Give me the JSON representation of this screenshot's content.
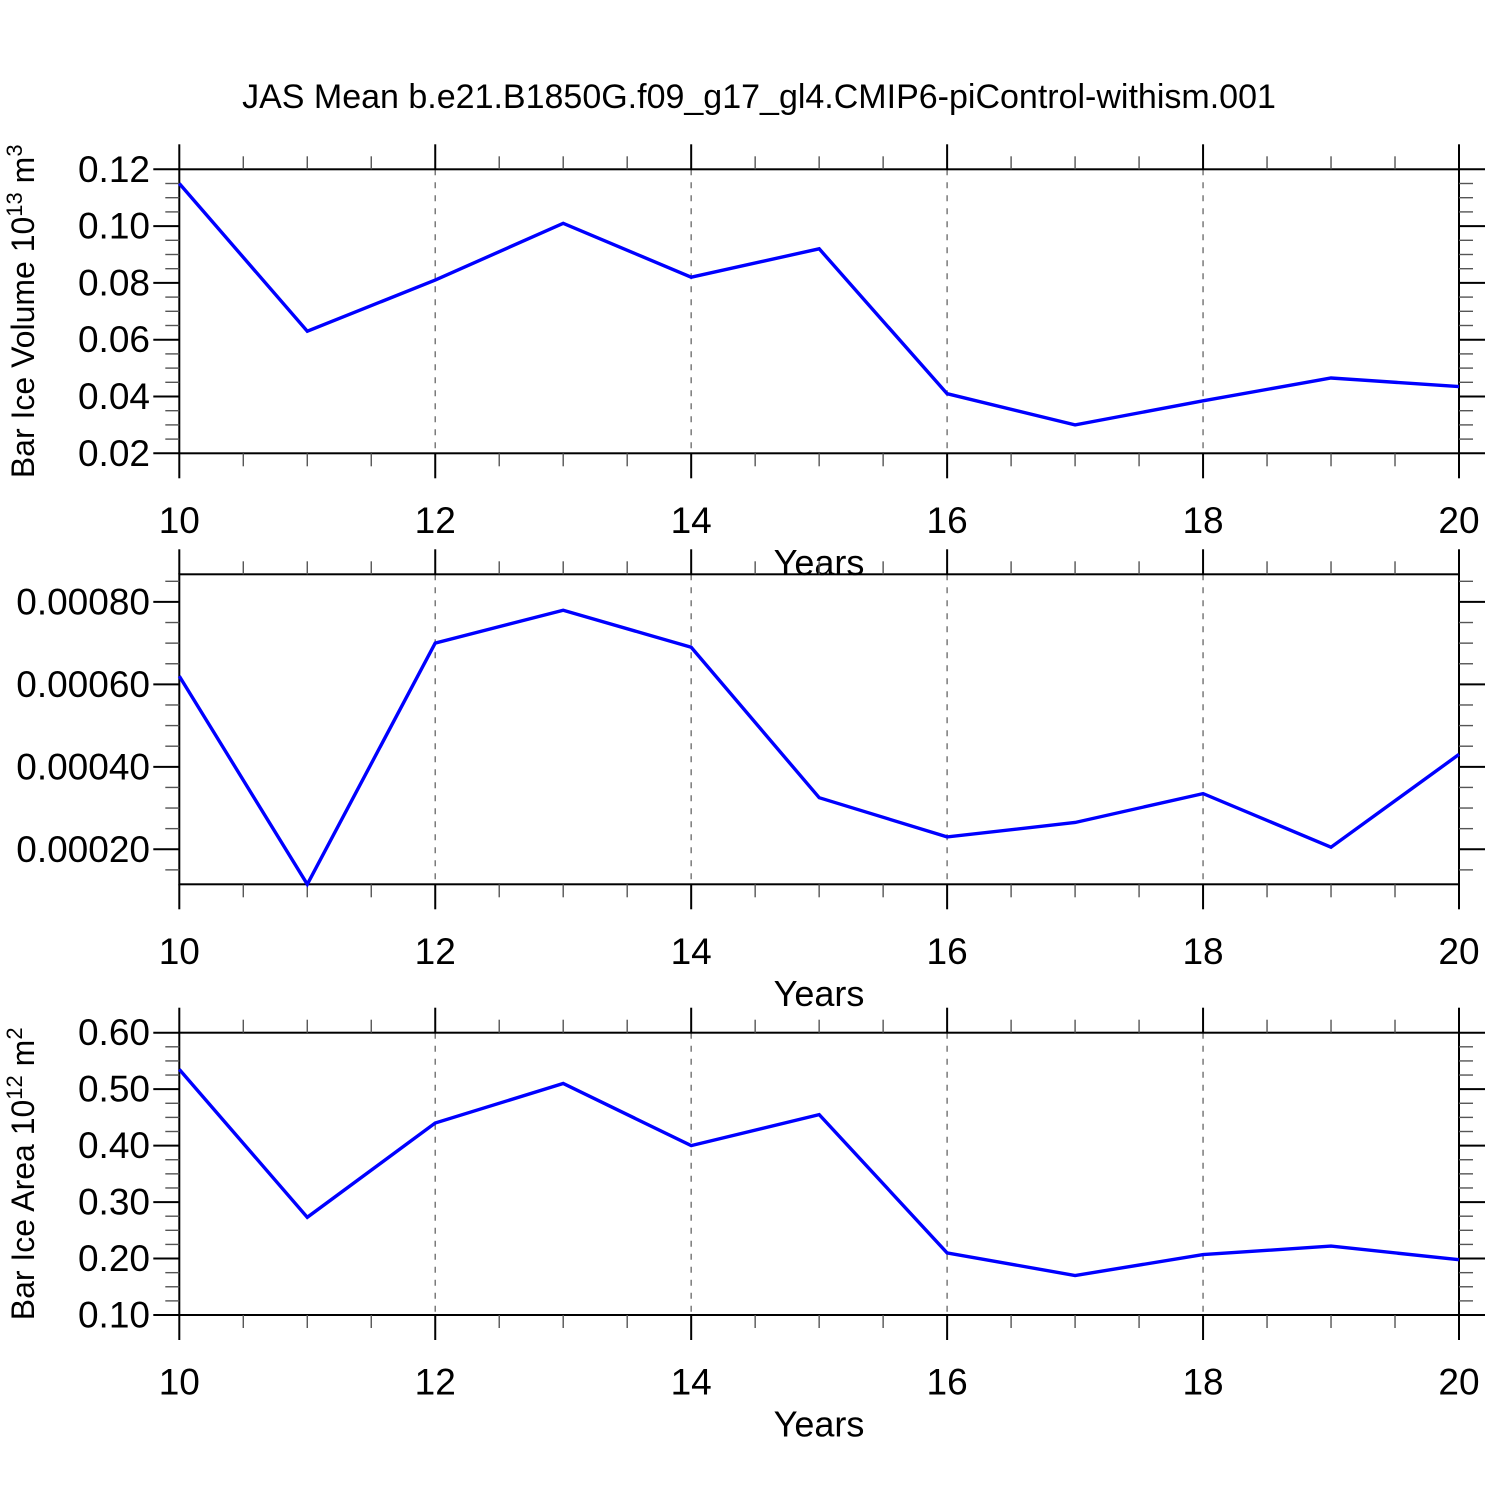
{
  "figure_title": "JAS Mean b.e21.B1850G.f09_g17_gl4.CMIP6-piControl-withism.001",
  "colors": {
    "line": "#0000ff",
    "axis": "#000000",
    "grid": "#7a7a7a",
    "minor_tick": "#555555",
    "text": "#000000",
    "background": "#ffffff"
  },
  "chart_data": {
    "type": "line",
    "n_panels": 3,
    "xlabel": "Years",
    "x_range": [
      10,
      20
    ],
    "x_minor_step": 0.5,
    "grid_x": [
      12,
      14,
      16,
      18
    ],
    "xticks": [
      {
        "v": 10,
        "t": "10"
      },
      {
        "v": 12,
        "t": "12"
      },
      {
        "v": 14,
        "t": "14"
      },
      {
        "v": 16,
        "t": "16"
      },
      {
        "v": 18,
        "t": "18"
      },
      {
        "v": 20,
        "t": "20"
      }
    ],
    "panels": [
      {
        "name": "bar-ice-volume",
        "ylabel_parts": [
          {
            "t": "Bar Ice Volume 10"
          },
          {
            "t": "13",
            "sup": true
          },
          {
            "t": " m"
          },
          {
            "t": "3",
            "sup": true
          }
        ],
        "x": [
          10,
          11,
          12,
          13,
          14,
          15,
          16,
          17,
          18,
          19,
          20
        ],
        "values": [
          0.115,
          0.063,
          0.081,
          0.101,
          0.082,
          0.092,
          0.041,
          0.03,
          0.0385,
          0.0465,
          0.0435
        ],
        "ylim": [
          0.02,
          0.12
        ],
        "y_minor_step": 0.005,
        "yticks": [
          {
            "v": 0.02,
            "t": "0.02"
          },
          {
            "v": 0.04,
            "t": "0.04"
          },
          {
            "v": 0.06,
            "t": "0.06"
          },
          {
            "v": 0.08,
            "t": "0.08"
          },
          {
            "v": 0.1,
            "t": "0.10"
          },
          {
            "v": 0.12,
            "t": "0.12"
          }
        ]
      },
      {
        "name": "bar-ice-middle-series",
        "ylabel_parts": [],
        "x": [
          10,
          11,
          12,
          13,
          14,
          15,
          16,
          17,
          18,
          19,
          20
        ],
        "values": [
          0.00062,
          0.000115,
          0.0007,
          0.00078,
          0.00069,
          0.000325,
          0.00023,
          0.000265,
          0.000335,
          0.000205,
          0.00043
        ],
        "ylim": [
          0.000115,
          0.000867
        ],
        "y_minor_step": 5e-05,
        "yticks": [
          {
            "v": 0.0002,
            "t": "0.00020"
          },
          {
            "v": 0.0004,
            "t": "0.00040"
          },
          {
            "v": 0.0006,
            "t": "0.00060"
          },
          {
            "v": 0.0008,
            "t": "0.00080"
          }
        ]
      },
      {
        "name": "bar-ice-area",
        "ylabel_parts": [
          {
            "t": "Bar Ice Area 10"
          },
          {
            "t": "12",
            "sup": true
          },
          {
            "t": " m"
          },
          {
            "t": "2",
            "sup": true
          }
        ],
        "x": [
          10,
          11,
          12,
          13,
          14,
          15,
          16,
          17,
          18,
          19,
          20
        ],
        "values": [
          0.535,
          0.273,
          0.44,
          0.51,
          0.4,
          0.455,
          0.21,
          0.17,
          0.207,
          0.222,
          0.198
        ],
        "ylim": [
          0.1,
          0.6
        ],
        "y_minor_step": 0.025,
        "yticks": [
          {
            "v": 0.1,
            "t": "0.10"
          },
          {
            "v": 0.2,
            "t": "0.20"
          },
          {
            "v": 0.3,
            "t": "0.30"
          },
          {
            "v": 0.4,
            "t": "0.40"
          },
          {
            "v": 0.5,
            "t": "0.50"
          },
          {
            "v": 0.6,
            "t": "0.60"
          }
        ]
      }
    ]
  }
}
